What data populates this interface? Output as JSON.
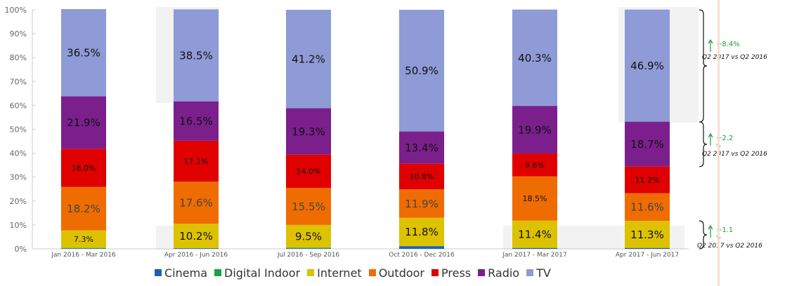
{
  "chart_data": {
    "type": "bar",
    "stacked": true,
    "percent": true,
    "categories": [
      "Jan 2016 - Mar 2016",
      "Apr 2016 - Jun 2016",
      "Jul 2016 - Sep 2016",
      "Oct 2016 - Dec 2016",
      "Jan 2017 - Mar 2017",
      "Apr 2017 - Jun 2017"
    ],
    "series": [
      {
        "name": "Cinema",
        "color": "#1f5fb5",
        "values": [
          0.2,
          0.2,
          0.2,
          1.1,
          0.3,
          0.3
        ]
      },
      {
        "name": "Digital Indoor",
        "color": "#17a34a",
        "values": [
          0.2,
          0.1,
          0.3,
          0.1,
          0.1,
          0.1
        ]
      },
      {
        "name": "Internet",
        "color": "#dcc200",
        "values": [
          7.3,
          10.2,
          9.5,
          11.8,
          11.4,
          11.3
        ]
      },
      {
        "name": "Outdoor",
        "color": "#ef6c00",
        "values": [
          18.2,
          17.6,
          15.5,
          11.9,
          18.5,
          11.6
        ]
      },
      {
        "name": "Press",
        "color": "#e00000",
        "values": [
          16.0,
          17.1,
          14.0,
          10.8,
          9.6,
          11.2
        ]
      },
      {
        "name": "Radio",
        "color": "#7b1f8c",
        "values": [
          21.9,
          16.5,
          19.3,
          13.4,
          19.9,
          18.7
        ]
      },
      {
        "name": "TV",
        "color": "#8e9bd6",
        "values": [
          36.5,
          38.5,
          41.2,
          50.9,
          40.3,
          46.9
        ]
      }
    ],
    "data_labels": [
      [
        null,
        null,
        "7.3%",
        "18.2%",
        "16.0%",
        "21.9%",
        "36.5%"
      ],
      [
        null,
        null,
        "10.2%",
        "17.6%",
        "17.1%",
        "16.5%",
        "38.5%"
      ],
      [
        null,
        null,
        "9.5%",
        "15.5%",
        "14.0%",
        "19.3%",
        "41.2%"
      ],
      [
        "",
        null,
        "11.8%",
        "11.9%",
        "10.8%",
        "13.4%",
        "50.9%"
      ],
      [
        null,
        null,
        "11.4%",
        "18.5%",
        "9.6%",
        "19.9%",
        "40.3%"
      ],
      [
        null,
        null,
        "11.3%",
        "11.6%",
        "11.2%",
        "18.7%",
        "46.9%"
      ]
    ],
    "y_ticks": [
      "0%",
      "10%",
      "20%",
      "30%",
      "40%",
      "50%",
      "60%",
      "70%",
      "80%",
      "90%",
      "100%"
    ],
    "ylim": [
      0,
      100
    ],
    "legend_position": "bottom",
    "annotations": [
      {
        "delta": "+8.4%",
        "note": "Q2 2017 vs Q2 2016",
        "range": [
          53.1,
          100
        ],
        "color": "#1a9e3a"
      },
      {
        "delta": "+2.2\n%",
        "note": "Q2 2017 vs Q2 2016",
        "range": [
          34.4,
          53.1
        ],
        "color": "#1a9e3a"
      },
      {
        "delta": "+1.1\n%",
        "note": "Q2 2017 vs Q2 2016",
        "range": [
          0,
          11.7
        ],
        "color": "#1a9e3a"
      }
    ]
  }
}
